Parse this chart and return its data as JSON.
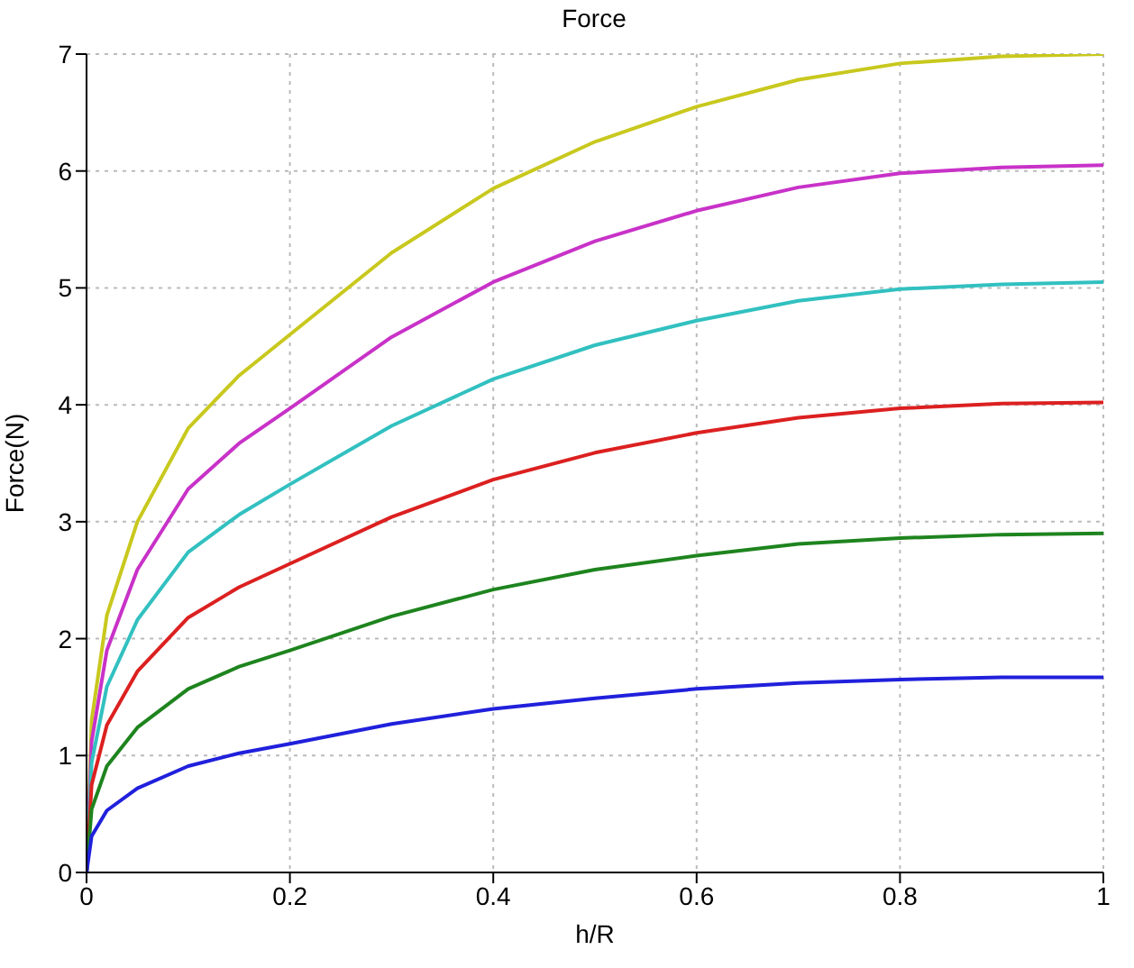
{
  "chart_data": {
    "type": "line",
    "title": "Force",
    "xlabel": "h/R",
    "ylabel": "Force(N)",
    "x": [
      0,
      0.005,
      0.02,
      0.05,
      0.1,
      0.15,
      0.2,
      0.3,
      0.4,
      0.5,
      0.6,
      0.7,
      0.8,
      0.9,
      1
    ],
    "series": [
      {
        "color": "#c8c81e",
        "values": [
          0,
          1.3,
          2.2,
          3.0,
          3.8,
          4.25,
          4.6,
          5.3,
          5.85,
          6.25,
          6.55,
          6.78,
          6.92,
          6.98,
          7.0
        ]
      },
      {
        "color": "#c832c8",
        "values": [
          0,
          1.12,
          1.9,
          2.59,
          3.28,
          3.67,
          3.97,
          4.58,
          5.05,
          5.4,
          5.66,
          5.86,
          5.98,
          6.03,
          6.05
        ]
      },
      {
        "color": "#32c0c0",
        "values": [
          0,
          0.94,
          1.59,
          2.16,
          2.74,
          3.06,
          3.32,
          3.82,
          4.22,
          4.51,
          4.72,
          4.89,
          4.99,
          5.03,
          5.05
        ]
      },
      {
        "color": "#dc2020",
        "values": [
          0,
          0.75,
          1.26,
          1.72,
          2.18,
          2.44,
          2.64,
          3.04,
          3.36,
          3.59,
          3.76,
          3.89,
          3.97,
          4.01,
          4.02
        ]
      },
      {
        "color": "#1e841e",
        "values": [
          0,
          0.54,
          0.91,
          1.24,
          1.57,
          1.76,
          1.9,
          2.19,
          2.42,
          2.59,
          2.71,
          2.81,
          2.86,
          2.89,
          2.9
        ]
      },
      {
        "color": "#2020dc",
        "values": [
          0,
          0.31,
          0.53,
          0.72,
          0.91,
          1.02,
          1.1,
          1.27,
          1.4,
          1.49,
          1.57,
          1.62,
          1.65,
          1.67,
          1.67
        ]
      }
    ],
    "xlim": [
      0,
      1
    ],
    "xticks": [
      0,
      0.2,
      0.4,
      0.6,
      0.8,
      1
    ],
    "ylim": [
      0,
      7
    ],
    "yticks": [
      0,
      1,
      2,
      3,
      4,
      5,
      6,
      7
    ],
    "grid": true,
    "line_style": "solid",
    "marker": "none"
  }
}
